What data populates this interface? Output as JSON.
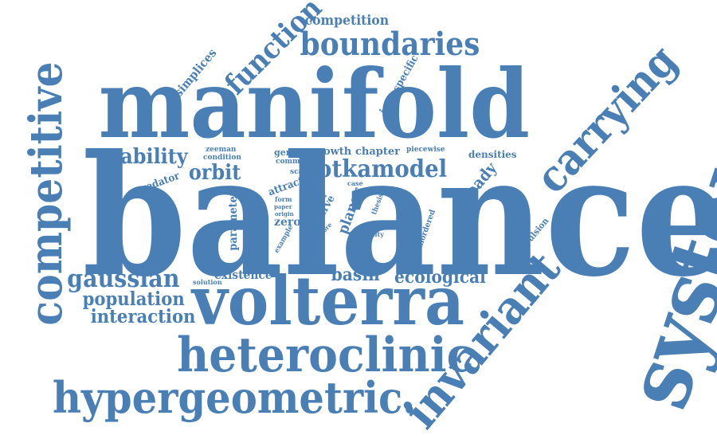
{
  "cloud": {
    "color": "#4a7fb5",
    "words": {
      "balance": "balance",
      "manifold": "manifold",
      "volterra": "volterra",
      "system": "system",
      "competitive": "competitive",
      "heteroclinic": "heteroclinic",
      "hypergeometric": "hypergeometric.",
      "invariant": "invariant",
      "carrying": "carrying",
      "boundaries": "boundaries",
      "function": "function",
      "lotkamodel": "lotkamodel",
      "gaussian": "gaussian",
      "population": "population",
      "interaction": "interaction",
      "stability": "stability",
      "orbit": "orbit",
      "ecological": "ecological",
      "basin": "basin",
      "existence": "existence",
      "competition": "competition",
      "simplices": "simplices",
      "intraspecific": "intraspecific",
      "predator": "predator",
      "parameter": "parameter",
      "zeeman": "zeeman",
      "condition": "condition",
      "general": "general",
      "common": "common",
      "growth": "growth",
      "chapter": "chapter",
      "piecewise": "piecewise",
      "densities": "densities",
      "scaled": "scaled",
      "attract": "attract",
      "form": "form",
      "paper": "paper",
      "origin": "origin",
      "rate": "rate",
      "curve": "curve",
      "zero": "zero",
      "example": "example",
      "more": "more",
      "case": "case",
      "planar": "planar",
      "thesis": "thesis",
      "infinity": "infinity",
      "analytic": "analytic",
      "unordered": "unordered",
      "steady": "steady",
      "repulsion": "repulsion",
      "solution": "solution"
    }
  }
}
